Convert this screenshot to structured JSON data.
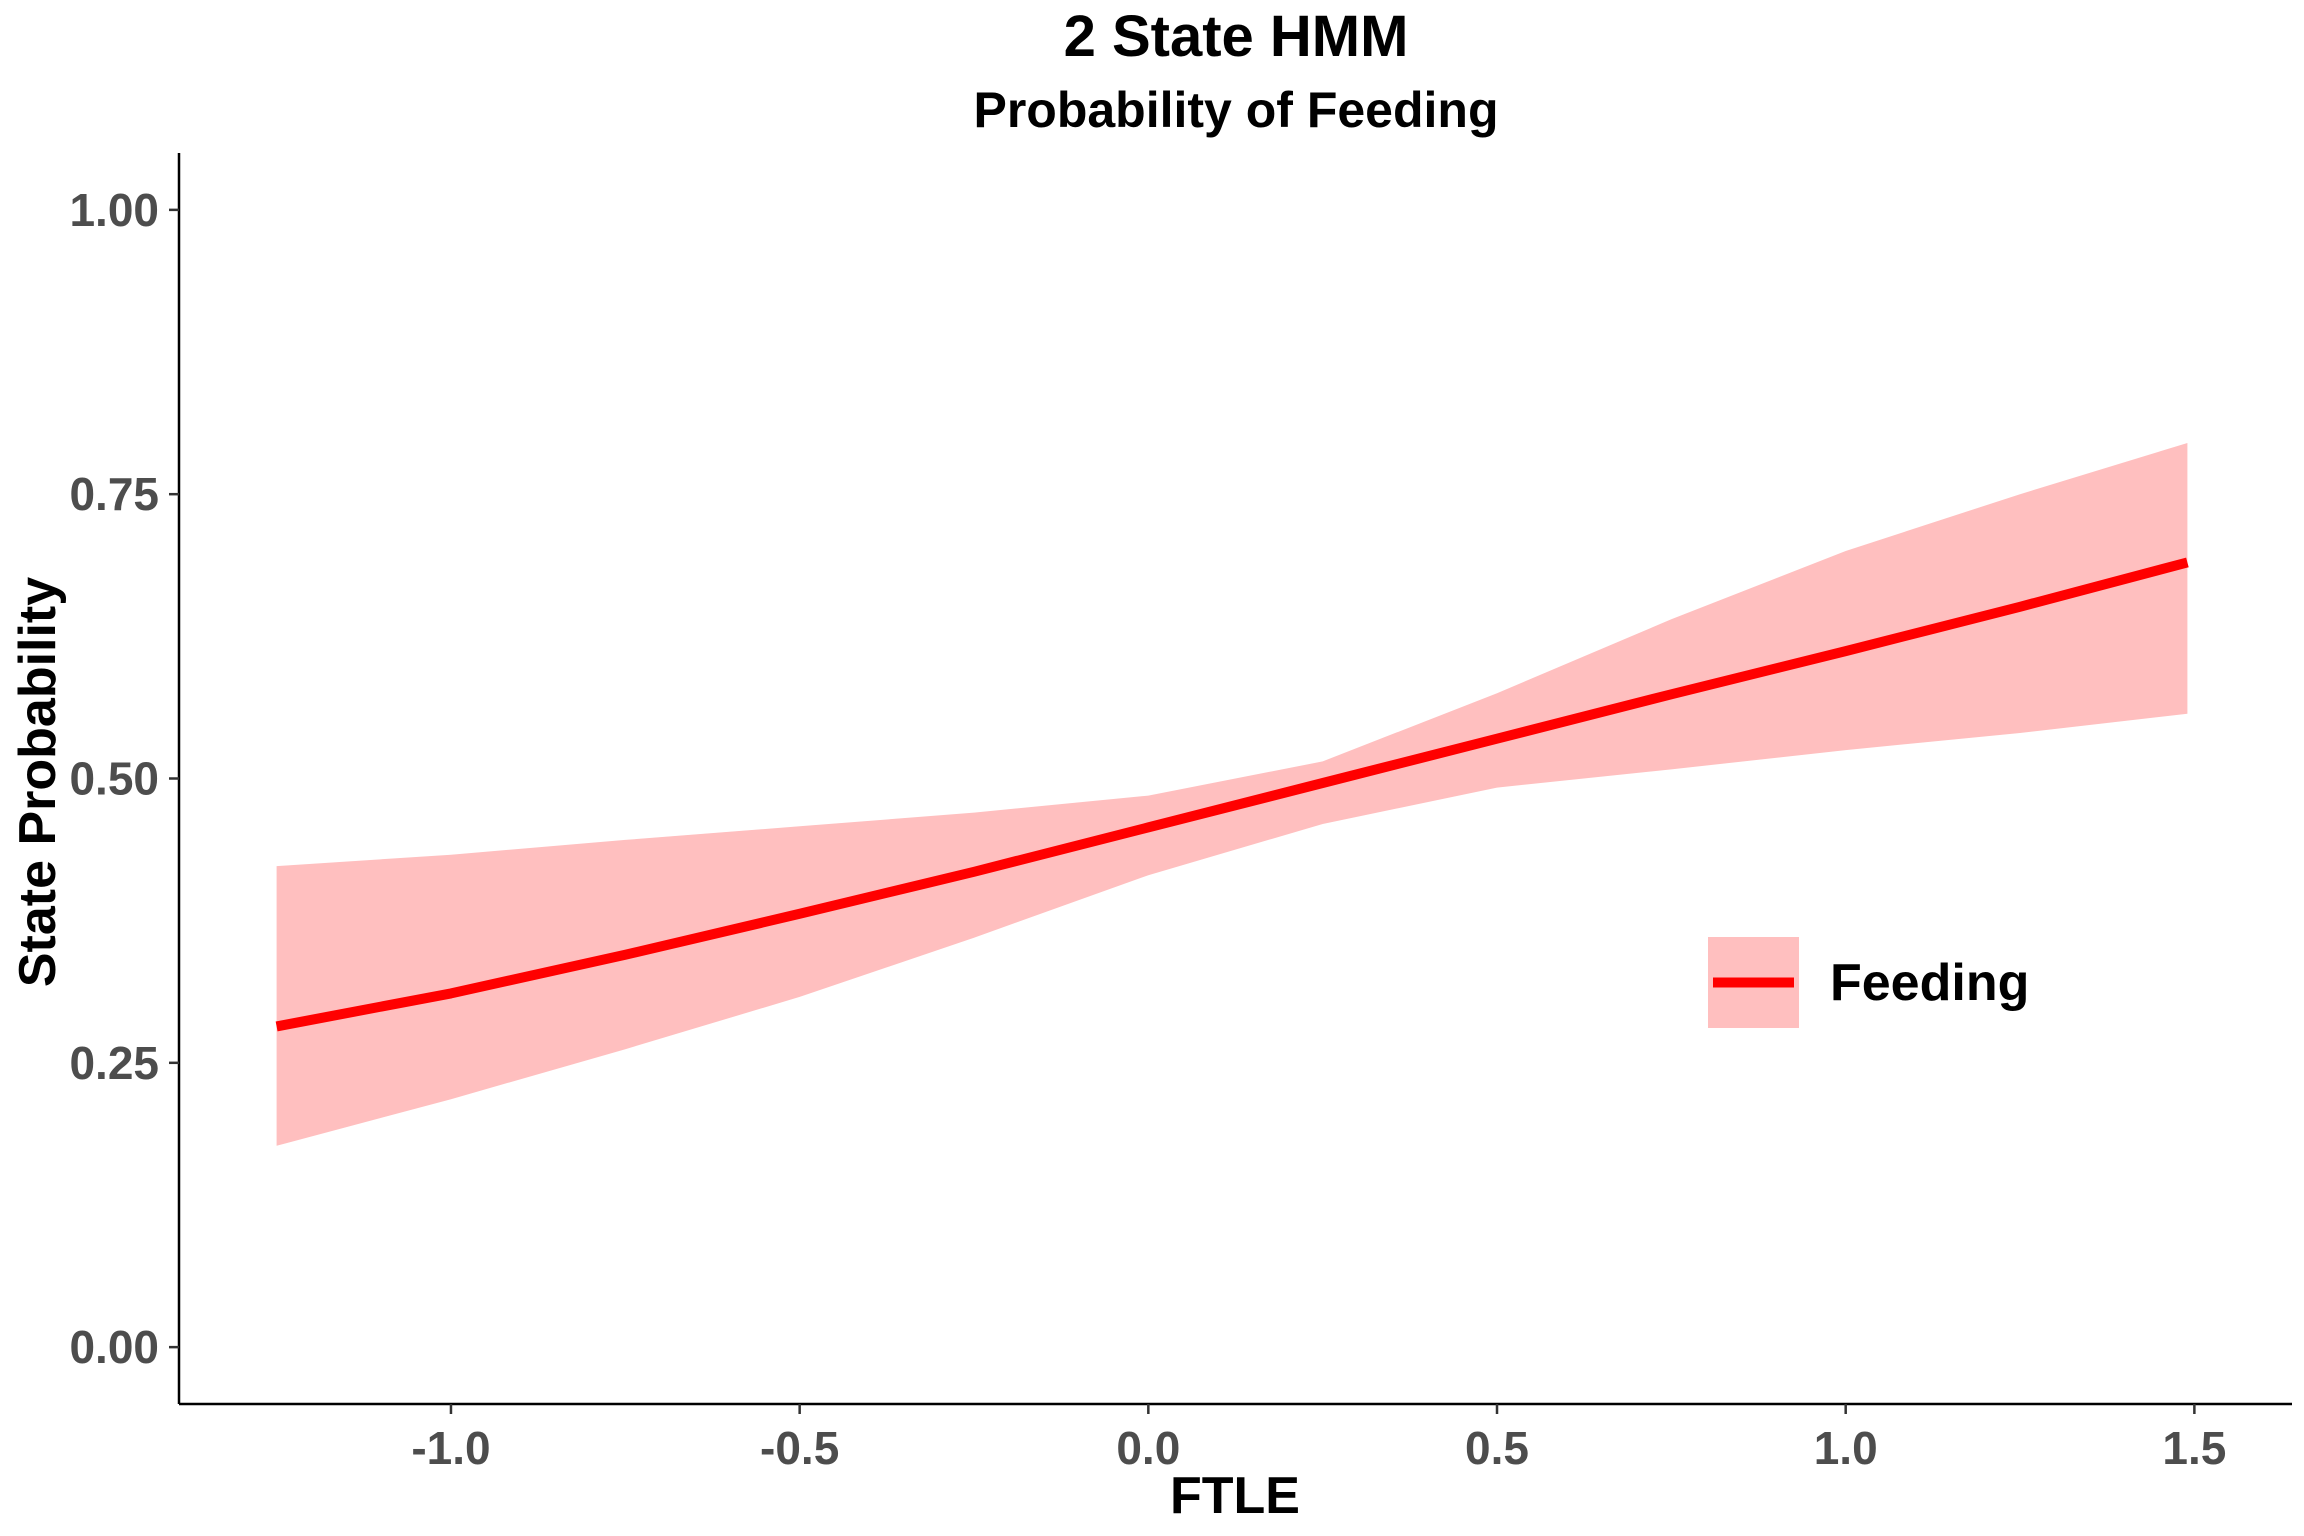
{
  "chart_data": {
    "type": "line",
    "title": "2 State HMM",
    "subtitle": "Probability of Feeding",
    "xlabel": "FTLE",
    "ylabel": "State Probability",
    "xlim": [
      -1.39,
      1.64
    ],
    "ylim": [
      -0.05,
      1.05
    ],
    "x_ticks": [
      -1.0,
      -0.5,
      0.0,
      0.5,
      1.0,
      1.5
    ],
    "x_tick_labels": [
      "-1.0",
      "-0.5",
      "0.0",
      "0.5",
      "1.0",
      "1.5"
    ],
    "y_ticks": [
      0.0,
      0.25,
      0.5,
      0.75,
      1.0
    ],
    "y_tick_labels": [
      "0.00",
      "0.25",
      "0.50",
      "0.75",
      "1.00"
    ],
    "grid": false,
    "legend_position": "right",
    "series": [
      {
        "name": "Feeding",
        "color": "#ff0000",
        "ribbon_color": "#ffbfbf",
        "x": [
          -1.25,
          -1.0,
          -0.75,
          -0.5,
          -0.25,
          0.0,
          0.25,
          0.5,
          0.75,
          1.0,
          1.25,
          1.49
        ],
        "y": [
          0.282,
          0.311,
          0.345,
          0.381,
          0.418,
          0.457,
          0.496,
          0.535,
          0.574,
          0.612,
          0.651,
          0.69
        ],
        "lower": [
          0.177,
          0.218,
          0.262,
          0.308,
          0.36,
          0.415,
          0.46,
          0.492,
          0.508,
          0.525,
          0.54,
          0.557
        ],
        "upper": [
          0.423,
          0.433,
          0.446,
          0.458,
          0.47,
          0.485,
          0.515,
          0.575,
          0.64,
          0.7,
          0.75,
          0.795
        ]
      }
    ]
  }
}
